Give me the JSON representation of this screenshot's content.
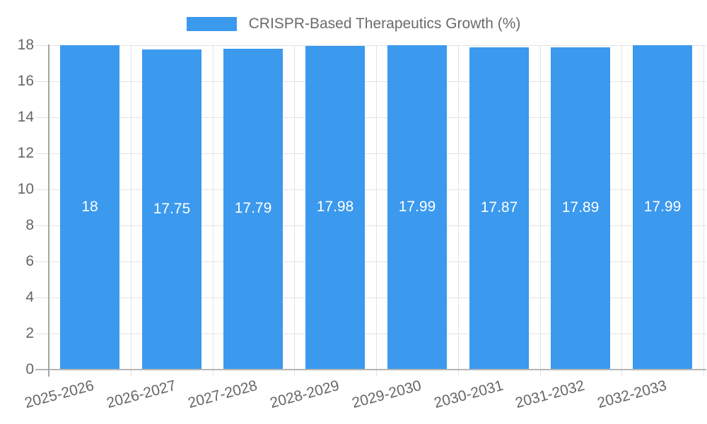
{
  "legend": {
    "label": "CRISPR-Based Therapeutics Growth (%)"
  },
  "chart_data": {
    "type": "bar",
    "title": "CRISPR-Based Therapeutics Growth (%)",
    "categories": [
      "2025-2026",
      "2026-2027",
      "2027-2028",
      "2028-2029",
      "2029-2030",
      "2030-2031",
      "2031-2032",
      "2032-2033"
    ],
    "values": [
      18,
      17.75,
      17.79,
      17.98,
      17.99,
      17.87,
      17.89,
      17.99
    ],
    "bar_labels": [
      "18",
      "17.75",
      "17.79",
      "17.98",
      "17.99",
      "17.87",
      "17.89",
      "17.99"
    ],
    "xlabel": "",
    "ylabel": "",
    "ylim": [
      0,
      18
    ],
    "yticks": [
      0,
      2,
      4,
      6,
      8,
      10,
      12,
      14,
      16,
      18
    ],
    "ytick_labels": [
      "0",
      "2",
      "4",
      "6",
      "8",
      "10",
      "12",
      "14",
      "16",
      "18"
    ],
    "grid": true,
    "legend_position": "top",
    "colors": {
      "bar": "#3b99ee",
      "grid": "#e3e3e3",
      "x_axis_line": "#b5b5b5",
      "y_axis_line": "#a6a6a6",
      "axis_text": "#666666",
      "value_label": "#ffffff",
      "legend_text": "#6b6b6b"
    }
  }
}
